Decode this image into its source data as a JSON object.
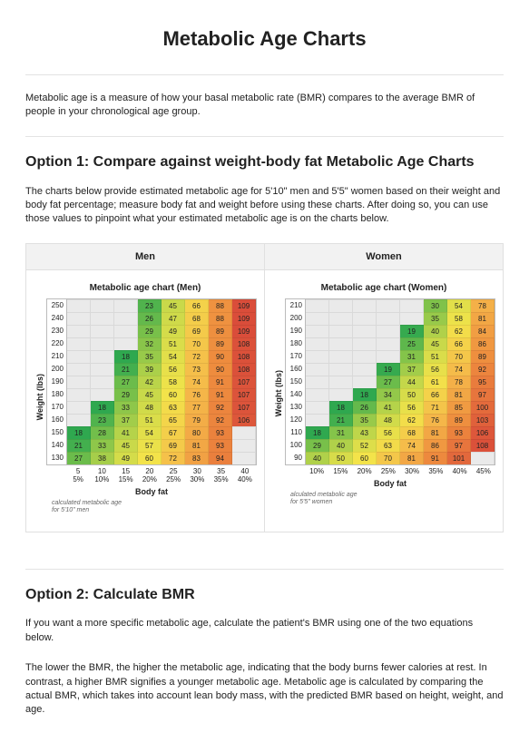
{
  "page_title": "Metabolic Age Charts",
  "intro": "Metabolic age is a measure of how your basal metabolic rate (BMR) compares to the average BMR of people in your chronological age group.",
  "option1": {
    "title": "Option 1: Compare against weight-body fat Metabolic Age Charts",
    "desc": "The charts below provide estimated metabolic age for 5'10\" men and 5'5\" women based on their weight and body fat percentage; measure body fat and weight before using these charts. After doing so, you can use those values to pinpoint what your estimated metabolic age is on the charts below."
  },
  "option2": {
    "title": "Option 2: Calculate BMR",
    "desc1": "If you want a more specific metabolic age, calculate the patient's BMR using one of the two equations below.",
    "desc2": "The lower the BMR, the higher the metabolic age, indicating that the body burns fewer calories at rest. In contrast, a higher BMR signifies a younger metabolic age. Metabolic age is calculated by comparing the actual BMR, which takes into account lean body mass, with the predicted BMR based on height, weight, and age."
  },
  "ylabel": "Weight (lbs)",
  "xlabel": "Body fat",
  "colorScale": {
    "comment": "green→yellow→orange→red gradient, values roughly 18-110",
    "stops": [
      {
        "v": 18,
        "c": "#2fa84f"
      },
      {
        "v": 30,
        "c": "#7fc24a"
      },
      {
        "v": 45,
        "c": "#c9d94a"
      },
      {
        "v": 60,
        "c": "#f3e34a"
      },
      {
        "v": 75,
        "c": "#f5b94a"
      },
      {
        "v": 90,
        "c": "#ee8c3e"
      },
      {
        "v": 110,
        "c": "#d94a3a"
      }
    ]
  },
  "men": {
    "header": "Men",
    "chart_title": "Metabolic age chart (Men)",
    "footnote": "calculated metabolic age\nfor 5'10\" men",
    "weights": [
      250,
      240,
      230,
      220,
      210,
      200,
      190,
      180,
      170,
      160,
      150,
      140,
      130
    ],
    "bodyfat_x": [
      5,
      10,
      15,
      20,
      25,
      30,
      35,
      40
    ],
    "bodyfat_pct": [
      "5%",
      "10%",
      "15%",
      "20%",
      "25%",
      "30%",
      "35%",
      "40%"
    ],
    "cells": [
      [
        null,
        null,
        null,
        23,
        45,
        66,
        88,
        109
      ],
      [
        null,
        null,
        null,
        26,
        47,
        68,
        88,
        109
      ],
      [
        null,
        null,
        null,
        29,
        49,
        69,
        89,
        109
      ],
      [
        null,
        null,
        null,
        32,
        51,
        70,
        89,
        108
      ],
      [
        null,
        null,
        18,
        35,
        54,
        72,
        90,
        108
      ],
      [
        null,
        null,
        21,
        39,
        56,
        73,
        90,
        108
      ],
      [
        null,
        null,
        27,
        42,
        58,
        74,
        91,
        107
      ],
      [
        null,
        null,
        29,
        45,
        60,
        76,
        91,
        107
      ],
      [
        null,
        18,
        33,
        48,
        63,
        77,
        92,
        107
      ],
      [
        null,
        23,
        37,
        51,
        65,
        79,
        92,
        106
      ],
      [
        18,
        28,
        41,
        54,
        67,
        80,
        93,
        null
      ],
      [
        21,
        33,
        45,
        57,
        69,
        81,
        93,
        null
      ],
      [
        27,
        38,
        49,
        60,
        72,
        83,
        94,
        null
      ]
    ]
  },
  "women": {
    "header": "Women",
    "chart_title": "Metabolic age chart (Women)",
    "footnote": "alculated metabolic age\nfor 5'5\" women",
    "weights": [
      210,
      200,
      190,
      180,
      170,
      160,
      150,
      140,
      130,
      120,
      110,
      100,
      90
    ],
    "bodyfat_x": [
      "",
      "",
      "",
      "",
      "",
      "",
      "",
      ""
    ],
    "bodyfat_pct": [
      "10%",
      "15%",
      "20%",
      "25%",
      "30%",
      "35%",
      "40%",
      "45%"
    ],
    "cells": [
      [
        null,
        null,
        null,
        null,
        null,
        30,
        54,
        78
      ],
      [
        null,
        null,
        null,
        null,
        null,
        35,
        58,
        81
      ],
      [
        null,
        null,
        null,
        null,
        19,
        40,
        62,
        84
      ],
      [
        null,
        null,
        null,
        null,
        25,
        45,
        66,
        86
      ],
      [
        null,
        null,
        null,
        null,
        31,
        51,
        70,
        89
      ],
      [
        null,
        null,
        null,
        19,
        37,
        56,
        74,
        92
      ],
      [
        null,
        null,
        null,
        27,
        44,
        61,
        78,
        95
      ],
      [
        null,
        null,
        18,
        34,
        50,
        66,
        81,
        97
      ],
      [
        null,
        18,
        26,
        41,
        56,
        71,
        85,
        100
      ],
      [
        null,
        21,
        35,
        48,
        62,
        76,
        89,
        103
      ],
      [
        18,
        31,
        43,
        56,
        68,
        81,
        93,
        106
      ],
      [
        29,
        40,
        52,
        63,
        74,
        86,
        97,
        108
      ],
      [
        40,
        50,
        60,
        70,
        81,
        91,
        101,
        null
      ]
    ]
  }
}
